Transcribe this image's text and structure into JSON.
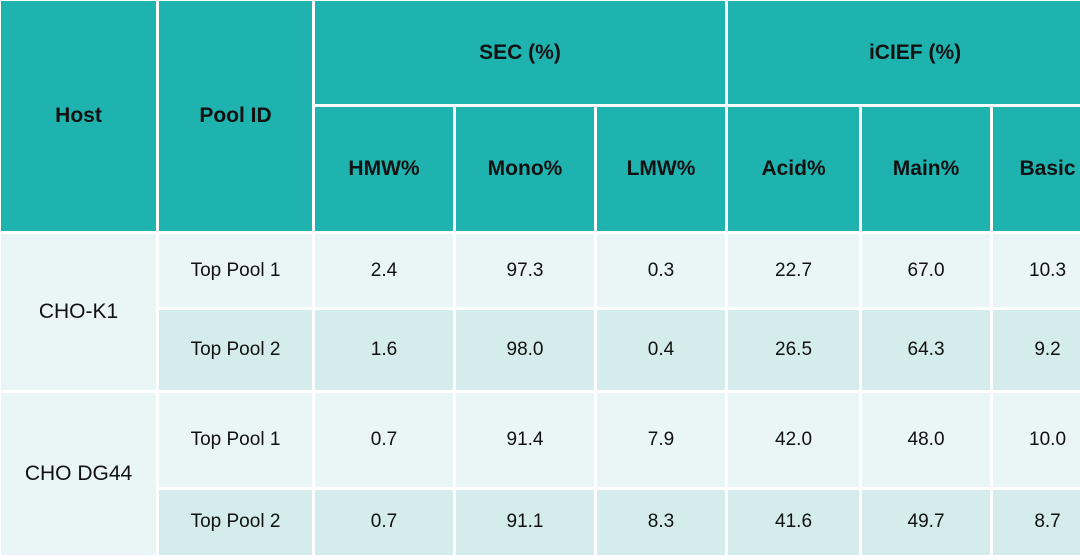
{
  "table": {
    "headers": {
      "host": "Host",
      "pool_id": "Pool ID",
      "sec_group": "SEC (%)",
      "icief_group": "iCIEF (%)",
      "hmw": "HMW%",
      "mono": "Mono%",
      "lmw": "LMW%",
      "acid": "Acid%",
      "main": "Main%",
      "basic": "Basic"
    },
    "colors": {
      "header_bg": "#1fb3b0",
      "row_light": "#eaf6f5",
      "row_dark": "#d4eceb"
    },
    "groups": [
      {
        "host": "CHO-K1",
        "rows": [
          {
            "pool": "Top Pool 1",
            "hmw": "2.4",
            "mono": "97.3",
            "lmw": "0.3",
            "acid": "22.7",
            "main": "67.0",
            "basic": "10.3"
          },
          {
            "pool": "Top Pool 2",
            "hmw": "1.6",
            "mono": "98.0",
            "lmw": "0.4",
            "acid": "26.5",
            "main": "64.3",
            "basic": "9.2"
          }
        ]
      },
      {
        "host": "CHO DG44",
        "rows": [
          {
            "pool": "Top Pool 1",
            "hmw": "0.7",
            "mono": "91.4",
            "lmw": "7.9",
            "acid": "42.0",
            "main": "48.0",
            "basic": "10.0"
          },
          {
            "pool": "Top Pool 2",
            "hmw": "0.7",
            "mono": "91.1",
            "lmw": "8.3",
            "acid": "41.6",
            "main": "49.7",
            "basic": "8.7"
          }
        ]
      }
    ]
  }
}
